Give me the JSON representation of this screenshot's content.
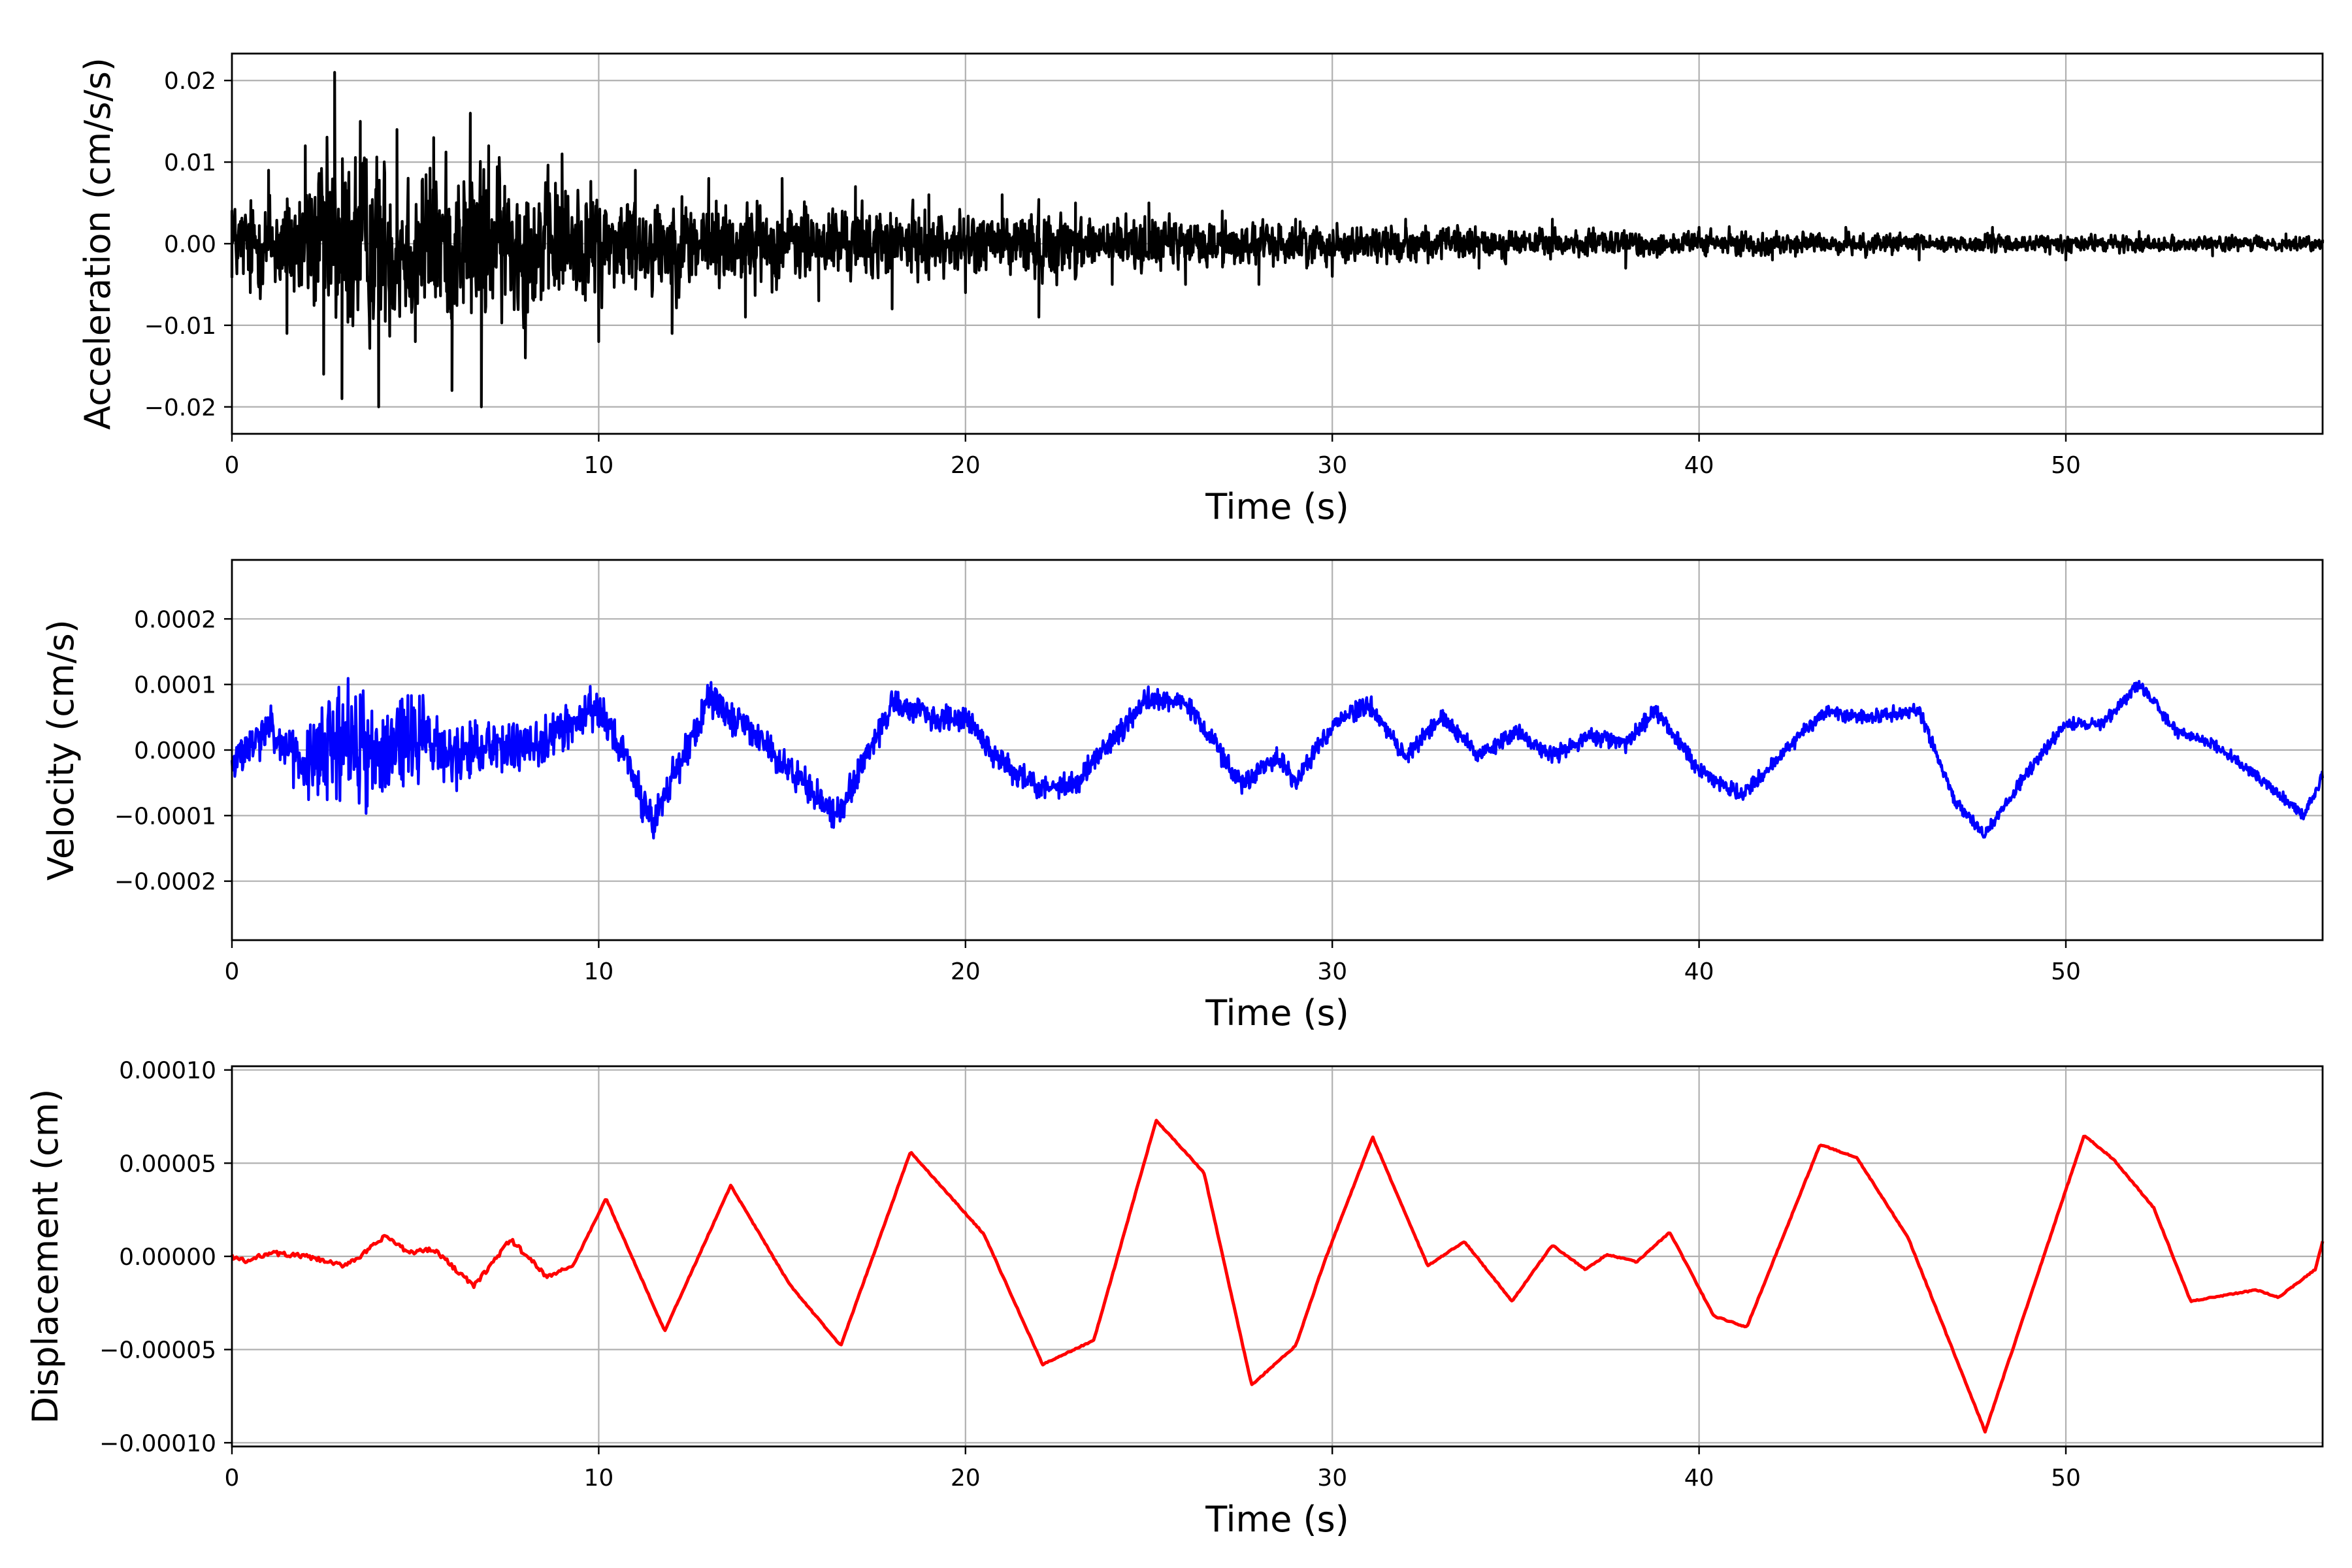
{
  "chart_data": [
    {
      "type": "line",
      "title": "",
      "xlabel": "Time (s)",
      "ylabel": "Acceleration (cm/s/s)",
      "xlim": [
        0,
        57
      ],
      "ylim": [
        -0.0233,
        0.0233
      ],
      "xticks": [
        0,
        10,
        20,
        30,
        40,
        50
      ],
      "xtick_labels": [
        "0",
        "10",
        "20",
        "30",
        "40",
        "50"
      ],
      "yticks": [
        -0.02,
        -0.01,
        0.0,
        0.01,
        0.02
      ],
      "ytick_labels": [
        "−0.02",
        "−0.01",
        "0.00",
        "0.01",
        "0.02"
      ],
      "grid": true,
      "color": "#000000",
      "envelope": {
        "t": [
          0,
          2,
          3,
          4,
          6,
          7,
          10,
          15,
          20,
          22,
          25,
          30,
          35,
          40,
          45,
          50,
          57
        ],
        "amp": [
          0.008,
          0.013,
          0.021,
          0.018,
          0.016,
          0.016,
          0.011,
          0.008,
          0.006,
          0.007,
          0.005,
          0.004,
          0.003,
          0.0025,
          0.002,
          0.0017,
          0.0013
        ]
      },
      "series": [
        {
          "x": [
            0,
            0.5,
            1,
            1.5,
            2,
            2.5,
            2.8,
            3,
            3.5,
            4,
            4.5,
            5,
            5.5,
            6,
            6.5,
            6.8,
            7,
            8,
            9,
            10,
            11,
            12,
            13,
            14,
            15,
            16,
            17,
            18,
            19,
            20,
            21,
            22,
            23,
            24,
            25,
            26,
            27,
            28,
            29,
            30,
            32,
            34,
            36,
            38,
            40,
            42,
            44,
            46,
            48,
            50,
            52,
            54,
            56,
            57
          ],
          "y": [
            0.004,
            -0.006,
            0.009,
            -0.011,
            0.012,
            -0.016,
            0.021,
            -0.019,
            0.015,
            -0.02,
            0.014,
            -0.012,
            0.013,
            -0.018,
            0.016,
            -0.02,
            0.012,
            -0.014,
            0.011,
            -0.012,
            0.009,
            -0.011,
            0.008,
            -0.009,
            0.008,
            -0.007,
            0.007,
            -0.008,
            0.006,
            -0.006,
            0.006,
            -0.009,
            0.005,
            -0.005,
            0.005,
            -0.005,
            0.004,
            -0.005,
            0.003,
            -0.004,
            0.003,
            -0.003,
            0.003,
            -0.003,
            0.002,
            -0.002,
            0.002,
            -0.002,
            0.002,
            -0.002,
            0.0015,
            -0.0015,
            0.0012,
            0.0005
          ]
        }
      ]
    },
    {
      "type": "line",
      "title": "",
      "xlabel": "Time (s)",
      "ylabel": "Velocity (cm/s)",
      "xlim": [
        0,
        57
      ],
      "ylim": [
        -0.00029,
        0.00029
      ],
      "xticks": [
        0,
        10,
        20,
        30,
        40,
        50
      ],
      "xtick_labels": [
        "0",
        "10",
        "20",
        "30",
        "40",
        "50"
      ],
      "yticks": [
        -0.0002,
        -0.0001,
        0.0,
        0.0001,
        0.0002
      ],
      "ytick_labels": [
        "−0.0002",
        "−0.0001",
        "0.0000",
        "0.0001",
        "0.0002"
      ],
      "grid": true,
      "color": "#0000ff",
      "series": [
        {
          "x": [
            0,
            1,
            2,
            3,
            4,
            5,
            6,
            7,
            8,
            9,
            10,
            11.5,
            13,
            14.5,
            16.5,
            18,
            19,
            20,
            21,
            22,
            23,
            25,
            26,
            27.5,
            28.5,
            29,
            30,
            31,
            32,
            33,
            34,
            35,
            36,
            37,
            38,
            38.8,
            40,
            41.2,
            42.5,
            43.5,
            44.5,
            46,
            47,
            47.8,
            49,
            50,
            51,
            52,
            53,
            54,
            55,
            56.5,
            57
          ],
          "y": [
            -2e-05,
            3e-05,
            -3e-05,
            2e-05,
            -1e-05,
            2e-05,
            -1e-05,
            1e-05,
            0.0,
            3e-05,
            7e-05,
            -0.00011,
            8e-05,
            1e-05,
            -0.0001,
            7e-05,
            5e-05,
            5e-05,
            -2e-05,
            -6e-05,
            -5e-05,
            8e-05,
            7e-05,
            -5e-05,
            -1e-05,
            -5e-05,
            4e-05,
            7e-05,
            -1e-05,
            5e-05,
            -1e-05,
            3e-05,
            -1e-05,
            2e-05,
            1e-05,
            6e-05,
            -3e-05,
            -7e-05,
            1e-05,
            6e-05,
            5e-05,
            6e-05,
            -8e-05,
            -0.00013,
            -3e-05,
            4e-05,
            4e-05,
            0.0001,
            3e-05,
            1e-05,
            -3e-05,
            -0.0001,
            -4e-05
          ]
        }
      ],
      "noise": {
        "t": [
          0,
          2,
          3,
          4,
          6,
          7,
          9,
          10,
          14,
          20,
          30,
          40,
          50,
          57
        ],
        "amp": [
          3e-05,
          6e-05,
          0.00012,
          9e-05,
          6e-05,
          5e-05,
          4e-05,
          4e-05,
          3e-05,
          2.5e-05,
          1.8e-05,
          1.5e-05,
          1.2e-05,
          1e-05
        ]
      }
    },
    {
      "type": "line",
      "title": "",
      "xlabel": "Time (s)",
      "ylabel": "Displacement (cm)",
      "xlim": [
        0,
        57
      ],
      "ylim": [
        -0.000102,
        0.000102
      ],
      "xticks": [
        0,
        10,
        20,
        30,
        40,
        50
      ],
      "xtick_labels": [
        "0",
        "10",
        "20",
        "30",
        "40",
        "50"
      ],
      "yticks": [
        -0.0001,
        -5e-05,
        0.0,
        5e-05,
        0.0001
      ],
      "ytick_labels": [
        "−0.00010",
        "−0.00005",
        "0.00000",
        "0.00005",
        "0.00010"
      ],
      "grid": true,
      "color": "#ff0000",
      "series": [
        {
          "x": [
            0,
            0.4,
            1,
            2,
            3,
            3.5,
            4.2,
            4.8,
            5.5,
            6.6,
            7.6,
            8.6,
            9.3,
            10.2,
            11.8,
            13.6,
            15.2,
            16.6,
            18.5,
            20.5,
            22.1,
            23.5,
            25.2,
            26.5,
            27.8,
            29.0,
            29.8,
            31.1,
            32.6,
            33.6,
            34.9,
            36.0,
            36.9,
            37.5,
            38.3,
            39.2,
            40.4,
            41.3,
            43.3,
            44.3,
            45.7,
            47.8,
            50.5,
            51.3,
            52.4,
            53.4,
            54.6,
            55.2,
            55.8,
            56.8,
            57.0
          ],
          "y": [
            0.0,
            -3e-06,
            2e-06,
            0.0,
            -5e-06,
            0.0,
            1.1e-05,
            2e-06,
            4e-06,
            -1.6e-05,
            9e-06,
            -1.1e-05,
            -5e-06,
            3.1e-05,
            -4e-05,
            3.8e-05,
            -1.5e-05,
            -4.8e-05,
            5.6e-05,
            1.2e-05,
            -5.8e-05,
            -4.5e-05,
            7.3e-05,
            4.5e-05,
            -6.9e-05,
            -4.8e-05,
            -2e-06,
            6.4e-05,
            -5e-06,
            8e-06,
            -2.4e-05,
            6e-06,
            -7e-06,
            1e-06,
            -3e-06,
            1.3e-05,
            -3.2e-05,
            -3.8e-05,
            6e-05,
            5.3e-05,
            1e-05,
            -9.4e-05,
            6.5e-05,
            5.2e-05,
            2.6e-05,
            -2.4e-05,
            -2e-05,
            -1.8e-05,
            -2.2e-05,
            -7e-06,
            8e-06
          ]
        }
      ]
    }
  ]
}
